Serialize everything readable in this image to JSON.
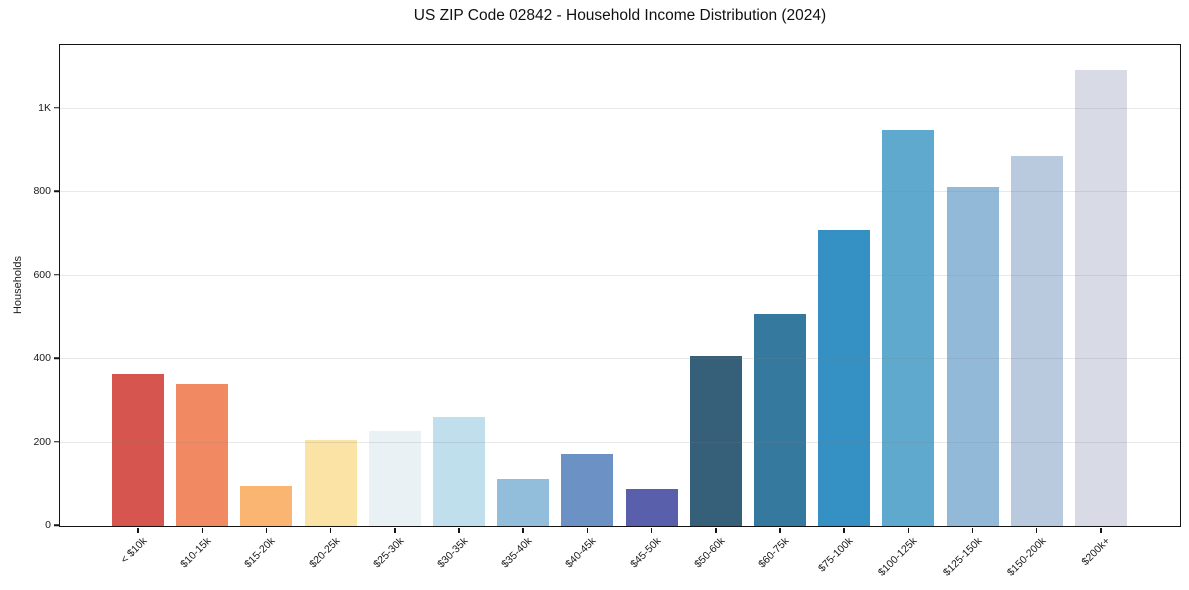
{
  "chart_data": {
    "type": "bar",
    "title": "US ZIP Code 02842 - Household Income Distribution (2024)",
    "xlabel": "",
    "ylabel": "Households",
    "categories": [
      "< $10k",
      "$10-15k",
      "$15-20k",
      "$20-25k",
      "$25-30k",
      "$30-35k",
      "$35-40k",
      "$40-45k",
      "$45-50k",
      "$50-60k",
      "$60-75k",
      "$75-100k",
      "$100-125k",
      "$125-150k",
      "$150-200k",
      "$200k+"
    ],
    "values": [
      365,
      341,
      95,
      207,
      227,
      261,
      113,
      172,
      88,
      408,
      507,
      709,
      948,
      813,
      887,
      1092
    ],
    "bar_colors": [
      "#d6564f",
      "#f18a62",
      "#f9b571",
      "#fbe3a5",
      "#e9f1f5",
      "#bfdfec",
      "#93bedb",
      "#6c91c4",
      "#5a5fac",
      "#366079",
      "#35799e",
      "#3590c3",
      "#5fa9ce",
      "#93b9d9",
      "#b9c9de",
      "#d8dae6"
    ],
    "yticks": [
      {
        "value": 0,
        "label": "0"
      },
      {
        "value": 200,
        "label": "200"
      },
      {
        "value": 400,
        "label": "400"
      },
      {
        "value": 600,
        "label": "600"
      },
      {
        "value": 800,
        "label": "800"
      },
      {
        "value": 1000,
        "label": "1K"
      }
    ],
    "ylim": [
      0,
      1150
    ],
    "grid": "horizontal",
    "legend": "none",
    "axis_color": "#141414",
    "background_color": "#ffffff"
  }
}
